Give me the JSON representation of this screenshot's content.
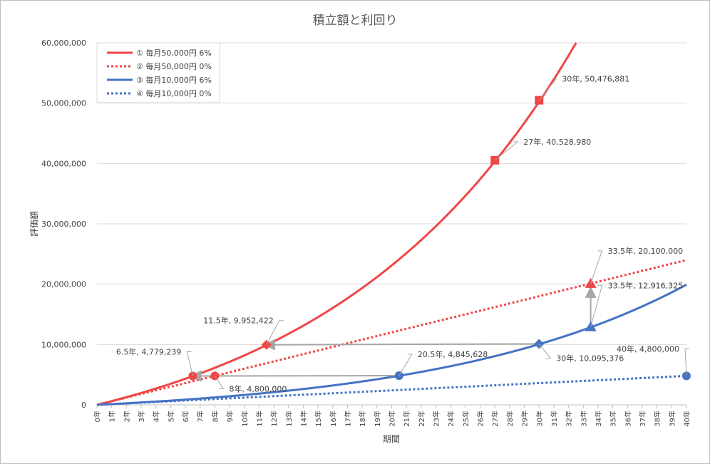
{
  "chart_data": {
    "type": "line",
    "title": "積立額と利回り",
    "xlabel": "期間",
    "ylabel": "評価額",
    "xlim": [
      0,
      40
    ],
    "ylim": [
      0,
      60000000
    ],
    "y_ticks": [
      0,
      10000000,
      20000000,
      30000000,
      40000000,
      50000000,
      60000000
    ],
    "y_tick_labels": [
      "0",
      "10,000,000",
      "20,000,000",
      "30,000,000",
      "40,000,000",
      "50,000,000",
      "60,000,000"
    ],
    "x_tick_labels": [
      "0年",
      "1年",
      "2年",
      "3年",
      "4年",
      "5年",
      "6年",
      "7年",
      "8年",
      "9年",
      "10年",
      "11年",
      "12年",
      "13年",
      "14年",
      "15年",
      "16年",
      "17年",
      "18年",
      "19年",
      "20年",
      "21年",
      "22年",
      "23年",
      "24年",
      "25年",
      "26年",
      "27年",
      "28年",
      "29年",
      "30年",
      "31年",
      "32年",
      "33年",
      "34年",
      "35年",
      "36年",
      "37年",
      "38年",
      "39年",
      "40年"
    ],
    "grid": "horizontal",
    "legend_position": "top-left",
    "series": [
      {
        "name": "① 毎月50,000円 6%",
        "monthly": 50000,
        "rate": 0.06,
        "color": "#f04646",
        "style": "solid"
      },
      {
        "name": "② 毎月50,000円 0%",
        "monthly": 50000,
        "rate": 0,
        "color": "#f04646",
        "style": "dotted"
      },
      {
        "name": "③ 毎月10,000円 6%",
        "monthly": 10000,
        "rate": 0.06,
        "color": "#4472c4",
        "style": "solid"
      },
      {
        "name": "④ 毎月10,000円 0%",
        "monthly": 10000,
        "rate": 0,
        "color": "#4472c4",
        "style": "dotted"
      }
    ],
    "markers": [
      {
        "x": 6.5,
        "y": 4779239,
        "label": "6.5年, 4,779,239",
        "shape": "circle",
        "color": "#f04646"
      },
      {
        "x": 8,
        "y": 4800000,
        "label": "8年, 4,800,000",
        "shape": "circle",
        "color": "#f04646"
      },
      {
        "x": 11.5,
        "y": 9952422,
        "label": "11.5年, 9,952,422",
        "shape": "diamond",
        "color": "#f04646"
      },
      {
        "x": 27,
        "y": 40528980,
        "label": "27年, 40,528,980",
        "shape": "square",
        "color": "#f04646"
      },
      {
        "x": 30,
        "y": 50476881,
        "label": "30年, 50,476,881",
        "shape": "square",
        "color": "#f04646"
      },
      {
        "x": 33.5,
        "y": 20100000,
        "label": "33.5年, 20,100,000",
        "shape": "triangle",
        "color": "#f04646"
      },
      {
        "x": 20.5,
        "y": 4845628,
        "label": "20.5年, 4,845,628",
        "shape": "circle",
        "color": "#4472c4"
      },
      {
        "x": 30,
        "y": 10095376,
        "label": "30年, 10,095,376",
        "shape": "diamond",
        "color": "#4472c4"
      },
      {
        "x": 33.5,
        "y": 12916325,
        "label": "33.5年, 12,916,325",
        "shape": "triangle",
        "color": "#4472c4"
      },
      {
        "x": 40,
        "y": 4800000,
        "label": "40年, 4,800,000",
        "shape": "circle",
        "color": "#4472c4"
      }
    ],
    "arrows": [
      {
        "from": [
          20.5,
          4845628
        ],
        "to": [
          6.5,
          4779239
        ]
      },
      {
        "from": [
          30,
          10095376
        ],
        "to": [
          11.5,
          9952422
        ]
      },
      {
        "from": [
          33.5,
          12916325
        ],
        "to": [
          33.5,
          20100000
        ]
      }
    ]
  }
}
